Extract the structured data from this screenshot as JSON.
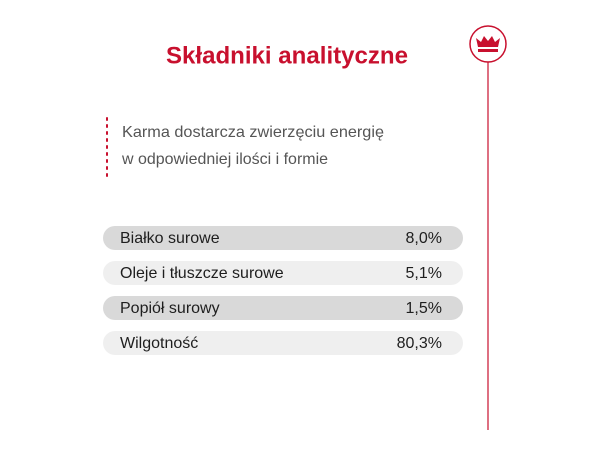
{
  "header": {
    "title": "Składniki analityczne"
  },
  "intro": {
    "lines": [
      "Karma dostarcza zwierzęciu energię",
      "w odpowiedniej ilości i formie"
    ]
  },
  "table": {
    "rows": [
      [
        "Białko surowe",
        "8,0%"
      ],
      [
        "Oleje i tłuszcze surowe",
        "5,1%"
      ],
      [
        "Popiół surowy",
        "1,5%"
      ],
      [
        "Wilgotność",
        "80,3%"
      ]
    ]
  }
}
